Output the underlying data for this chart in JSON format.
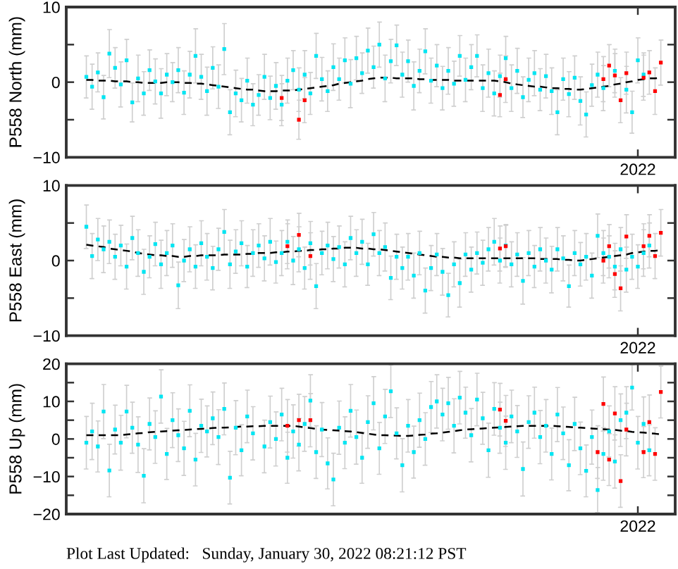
{
  "chart_data": [
    {
      "type": "scatter",
      "ylabel": "P558 North (mm)",
      "marker": "square",
      "categories": [
        null,
        null,
        null,
        null,
        null,
        null,
        null,
        null,
        null,
        null,
        null,
        null,
        null,
        null,
        null,
        null,
        null,
        null,
        null,
        null,
        null,
        null,
        null,
        null,
        null,
        null,
        null,
        null,
        null,
        null,
        null,
        null,
        null,
        null,
        null,
        null,
        null,
        null,
        null,
        null,
        null,
        null,
        null,
        null,
        null,
        null,
        null,
        null,
        null,
        null,
        null,
        null,
        null,
        null,
        null,
        null,
        null,
        null,
        null,
        null,
        null,
        null,
        null,
        null,
        null,
        null,
        null,
        null,
        null,
        null,
        null,
        null,
        null,
        null,
        null,
        null,
        null,
        null,
        null,
        null,
        null,
        null,
        null,
        null,
        null,
        null,
        null,
        null,
        null,
        null,
        null,
        null,
        null,
        null,
        null,
        null,
        null,
        null,
        null,
        "2022",
        null,
        null,
        null,
        null,
        null,
        null
      ],
      "ylim": [
        -10,
        10
      ],
      "yticks": [
        -10,
        {
          "value": -5,
          "label": null
        },
        0,
        {
          "value": 5,
          "label": null
        },
        10
      ],
      "series": [
        {
          "color": "#00e5f2",
          "values": [
            null,
            null,
            null,
            0.7,
            -0.6,
            1.3,
            -2.0,
            3.8,
            1.9,
            -0.3,
            2.9,
            -2.7,
            0.5,
            -1.5,
            1.6,
            0.1,
            -1.5,
            1.0,
            0.0,
            1.6,
            -1.4,
            1.0,
            3.5,
            0.7,
            -1.2,
            1.9,
            -0.6,
            4.4,
            -4.0,
            -1.5,
            -2.4,
            0.2,
            -3.0,
            -1.7,
            0.7,
            -2.1,
            -0.5,
            -3.0,
            0.2,
            1.6,
            -1.0,
            1.0,
            -1.5,
            3.5,
            0.4,
            -1.2,
            2.0,
            0.4,
            2.9,
            -0.2,
            3.2,
            1.2,
            4.2,
            2.0,
            5.0,
            0.5,
            2.8,
            4.9,
            1.0,
            2.8,
            -0.5,
            1.5,
            4.1,
            0.2,
            2.2,
            -0.8,
            1.5,
            -0.2,
            3.5,
            0.3,
            2.0,
            3.5,
            -0.8,
            1.2,
            -1.5,
            0.8,
            3.2,
            -0.8,
            1.5,
            -2.0,
            0.3,
            1.2,
            -1.0,
            0.8,
            -1.2,
            -4.0,
            0.4,
            -1.6,
            0.6,
            -2.5,
            -4.3,
            -0.4,
            1.0,
            -0.8,
            null,
            1.5,
            null,
            -1.0,
            -4.0,
            2.9,
            1.0,
            null,
            null,
            null,
            null,
            null
          ],
          "errors": [
            null,
            null,
            null,
            2.8,
            3.0,
            2.6,
            2.9,
            3.2,
            2.7,
            3.0,
            2.8,
            2.6,
            3.1,
            2.9,
            2.7,
            3.0,
            3.3,
            2.8,
            2.6,
            3.0,
            2.9,
            3.1,
            3.6,
            3.0,
            3.2,
            2.8,
            2.9,
            3.4,
            3.0,
            3.1,
            2.9,
            3.0,
            2.8,
            2.7,
            3.0,
            2.9,
            3.1,
            2.8,
            3.0,
            2.6,
            2.9,
            3.2,
            2.8,
            3.0,
            2.9,
            2.7,
            3.1,
            2.8,
            3.0,
            3.2,
            2.9,
            2.7,
            3.0,
            2.8,
            3.0,
            3.1,
            2.9,
            2.7,
            3.0,
            2.8,
            3.2,
            2.9,
            3.0,
            3.0,
            2.8,
            2.9,
            3.1,
            3.0,
            2.7,
            2.9,
            3.0,
            2.8,
            3.1,
            3.2,
            3.0,
            2.8,
            2.9,
            3.1,
            3.0,
            2.7,
            2.9,
            3.0,
            2.8,
            2.9,
            3.1,
            3.0,
            2.8,
            3.0,
            2.9,
            3.2,
            3.0,
            2.8,
            3.0,
            3.0,
            null,
            2.9,
            null,
            3.1,
            2.8,
            3.0,
            2.9,
            null,
            null,
            null,
            null,
            null
          ]
        },
        {
          "color": "#ff0000",
          "values": [
            null,
            null,
            null,
            null,
            null,
            null,
            null,
            null,
            null,
            null,
            null,
            null,
            null,
            null,
            null,
            null,
            null,
            null,
            null,
            null,
            null,
            null,
            null,
            null,
            null,
            null,
            null,
            null,
            null,
            null,
            null,
            null,
            null,
            null,
            null,
            null,
            null,
            -2.1,
            null,
            null,
            -5.0,
            -2.4,
            null,
            null,
            null,
            null,
            null,
            null,
            null,
            null,
            null,
            null,
            null,
            null,
            null,
            null,
            null,
            null,
            null,
            null,
            null,
            null,
            null,
            null,
            null,
            null,
            null,
            null,
            null,
            null,
            null,
            null,
            null,
            null,
            null,
            -1.7,
            0.4,
            null,
            null,
            null,
            null,
            null,
            null,
            null,
            null,
            null,
            null,
            null,
            null,
            null,
            null,
            null,
            null,
            0.4,
            2.2,
            0.9,
            -2.4,
            1.2,
            null,
            null,
            0.6,
            1.3,
            -1.2,
            2.6,
            null,
            null
          ],
          "errors": [
            null,
            null,
            null,
            null,
            null,
            null,
            null,
            null,
            null,
            null,
            null,
            null,
            null,
            null,
            null,
            null,
            null,
            null,
            null,
            null,
            null,
            null,
            null,
            null,
            null,
            null,
            null,
            null,
            null,
            null,
            null,
            null,
            null,
            null,
            null,
            null,
            null,
            3.0,
            null,
            null,
            2.6,
            3.0,
            null,
            null,
            null,
            null,
            null,
            null,
            null,
            null,
            null,
            null,
            null,
            null,
            null,
            null,
            null,
            null,
            null,
            null,
            null,
            null,
            null,
            null,
            null,
            null,
            null,
            null,
            null,
            null,
            null,
            null,
            null,
            null,
            null,
            2.9,
            3.1,
            null,
            null,
            null,
            null,
            null,
            null,
            null,
            null,
            null,
            null,
            null,
            null,
            null,
            null,
            null,
            null,
            3.0,
            2.8,
            2.9,
            3.0,
            2.8,
            null,
            null,
            3.0,
            2.9,
            3.1,
            3.0,
            null,
            null
          ]
        },
        {
          "type": "line",
          "color": "#000000",
          "line_style": "dashed",
          "marker": "none",
          "values": [
            null,
            null,
            null,
            0.3,
            0.3,
            0.2,
            0.2,
            0.2,
            0.1,
            0.1,
            0.1,
            0.0,
            0.0,
            -0.1,
            -0.1,
            -0.1,
            -0.1,
            0.0,
            0.0,
            0.0,
            -0.1,
            -0.1,
            -0.2,
            -0.2,
            -0.3,
            -0.4,
            -0.5,
            -0.6,
            -0.7,
            -0.8,
            -0.9,
            -1.0,
            -1.0,
            -1.1,
            -1.2,
            -1.2,
            -1.2,
            -1.1,
            -1.1,
            -1.1,
            -1.0,
            -0.9,
            -0.8,
            -0.7,
            -0.6,
            -0.5,
            -0.4,
            -0.2,
            -0.1,
            0.0,
            0.1,
            0.2,
            0.4,
            0.5,
            0.6,
            0.6,
            0.6,
            0.5,
            0.5,
            0.5,
            0.5,
            0.4,
            0.4,
            0.3,
            0.3,
            0.3,
            0.3,
            0.2,
            0.2,
            0.2,
            0.2,
            0.2,
            0.2,
            0.2,
            0.2,
            0.1,
            0.0,
            -0.2,
            -0.3,
            -0.4,
            -0.5,
            -0.6,
            -0.6,
            -0.7,
            -0.8,
            -0.8,
            -0.9,
            -0.9,
            -1.0,
            -1.0,
            -0.9,
            -0.8,
            -0.7,
            -0.6,
            -0.5,
            -0.3,
            -0.2,
            0.0,
            0.1,
            0.3,
            0.4,
            0.5,
            0.5,
            0.6,
            null,
            null
          ]
        }
      ]
    },
    {
      "type": "scatter",
      "ylabel": "P558 East (mm)",
      "marker": "square",
      "categories": [
        null,
        null,
        null,
        null,
        null,
        null,
        null,
        null,
        null,
        null,
        null,
        null,
        null,
        null,
        null,
        null,
        null,
        null,
        null,
        null,
        null,
        null,
        null,
        null,
        null,
        null,
        null,
        null,
        null,
        null,
        null,
        null,
        null,
        null,
        null,
        null,
        null,
        null,
        null,
        null,
        null,
        null,
        null,
        null,
        null,
        null,
        null,
        null,
        null,
        null,
        null,
        null,
        null,
        null,
        null,
        null,
        null,
        null,
        null,
        null,
        null,
        null,
        null,
        null,
        null,
        null,
        null,
        null,
        null,
        null,
        null,
        null,
        null,
        null,
        null,
        null,
        null,
        null,
        null,
        null,
        null,
        null,
        null,
        null,
        null,
        null,
        null,
        null,
        null,
        null,
        null,
        null,
        null,
        null,
        null,
        null,
        null,
        null,
        null,
        "2022",
        null,
        null,
        null,
        null,
        null,
        null
      ],
      "ylim": [
        -10,
        10
      ],
      "yticks": [
        -10,
        {
          "value": -5,
          "label": null
        },
        0,
        {
          "value": 5,
          "label": null
        },
        10
      ],
      "series": [
        {
          "color": "#00e5f2",
          "values": [
            null,
            null,
            null,
            4.5,
            0.6,
            2.8,
            1.5,
            2.5,
            0.5,
            2.0,
            -0.8,
            3.0,
            1.0,
            -1.5,
            0.5,
            2.2,
            -0.5,
            1.0,
            2.0,
            -3.3,
            0.0,
            1.5,
            -0.8,
            2.3,
            0.5,
            -1.0,
            1.5,
            3.8,
            -0.5,
            1.2,
            2.3,
            -0.8,
            1.0,
            2.0,
            0.3,
            2.5,
            -0.2,
            1.0,
            2.5,
            0.0,
            1.5,
            -1.0,
            2.3,
            -3.4,
            1.0,
            2.0,
            0.2,
            1.8,
            -0.5,
            3.0,
            1.0,
            2.5,
            -0.5,
            3.5,
            1.0,
            1.8,
            -2.3,
            0.5,
            -1.0,
            0.5,
            -2.0,
            1.0,
            -4.0,
            -1.0,
            0.8,
            -1.5,
            -4.6,
            -0.5,
            -3.0,
            0.8,
            -1.2,
            1.0,
            -0.3,
            1.5,
            2.5,
            0.0,
            2.0,
            -0.5,
            0.8,
            -2.7,
            1.0,
            -0.8,
            1.5,
            0.0,
            -1.2,
            1.5,
            0.3,
            -3.4,
            1.0,
            -0.5,
            0.5,
            -2.0,
            3.3,
            1.0,
            0.5,
            -0.8,
            1.5,
            -1.2,
            0.5,
            -0.8,
            1.0,
            2.0,
            null,
            null,
            null,
            null
          ],
          "errors": [
            null,
            null,
            null,
            2.9,
            3.0,
            2.8,
            3.1,
            2.9,
            3.0,
            2.7,
            3.0,
            2.9,
            3.1,
            3.0,
            2.8,
            2.9,
            3.2,
            3.0,
            2.9,
            3.1,
            2.8,
            3.0,
            2.9,
            3.0,
            3.1,
            2.9,
            2.8,
            3.0,
            3.2,
            2.9,
            3.0,
            2.8,
            3.1,
            2.9,
            3.0,
            3.1,
            2.8,
            3.0,
            2.9,
            3.2,
            3.0,
            2.8,
            2.9,
            3.0,
            2.9,
            3.1,
            3.0,
            2.8,
            3.0,
            2.9,
            3.1,
            3.0,
            2.8,
            2.9,
            3.0,
            3.2,
            2.9,
            3.0,
            2.8,
            3.1,
            3.0,
            2.9,
            3.0,
            3.0,
            2.8,
            3.1,
            2.9,
            3.0,
            3.2,
            2.9,
            3.0,
            2.8,
            3.0,
            2.9,
            3.1,
            3.0,
            2.8,
            3.0,
            2.9,
            3.1,
            3.0,
            2.8,
            2.9,
            3.0,
            3.1,
            2.9,
            3.0,
            2.8,
            3.0,
            2.9,
            3.1,
            3.0,
            2.9,
            3.0,
            2.8,
            3.1,
            2.9,
            3.0,
            3.0,
            2.9,
            3.1,
            3.0,
            null,
            null,
            null,
            null
          ]
        },
        {
          "color": "#ff0000",
          "values": [
            null,
            null,
            null,
            null,
            null,
            null,
            null,
            null,
            null,
            null,
            null,
            null,
            null,
            null,
            null,
            null,
            null,
            null,
            null,
            null,
            null,
            null,
            null,
            null,
            null,
            null,
            null,
            null,
            null,
            null,
            null,
            null,
            null,
            null,
            null,
            null,
            null,
            null,
            1.9,
            null,
            3.4,
            null,
            0.6,
            null,
            null,
            null,
            null,
            null,
            null,
            null,
            null,
            null,
            null,
            null,
            null,
            null,
            null,
            null,
            null,
            null,
            null,
            null,
            null,
            null,
            null,
            null,
            null,
            null,
            null,
            null,
            null,
            null,
            null,
            null,
            null,
            1.6,
            1.9,
            null,
            null,
            null,
            null,
            null,
            null,
            null,
            null,
            null,
            null,
            null,
            null,
            null,
            null,
            null,
            null,
            0.0,
            1.9,
            -1.8,
            -3.7,
            3.2,
            null,
            null,
            1.9,
            3.3,
            0.6,
            3.7,
            null,
            null
          ],
          "errors": [
            null,
            null,
            null,
            null,
            null,
            null,
            null,
            null,
            null,
            null,
            null,
            null,
            null,
            null,
            null,
            null,
            null,
            null,
            null,
            null,
            null,
            null,
            null,
            null,
            null,
            null,
            null,
            null,
            null,
            null,
            null,
            null,
            null,
            null,
            null,
            null,
            null,
            null,
            3.0,
            null,
            2.9,
            null,
            3.1,
            null,
            null,
            null,
            null,
            null,
            null,
            null,
            null,
            null,
            null,
            null,
            null,
            null,
            null,
            null,
            null,
            null,
            null,
            null,
            null,
            null,
            null,
            null,
            null,
            null,
            null,
            null,
            null,
            null,
            null,
            null,
            null,
            3.0,
            2.8,
            null,
            null,
            null,
            null,
            null,
            null,
            null,
            null,
            null,
            null,
            null,
            null,
            null,
            null,
            null,
            null,
            3.0,
            2.9,
            3.1,
            3.0,
            2.9,
            null,
            null,
            3.0,
            2.8,
            3.0,
            3.1,
            null,
            null
          ]
        },
        {
          "type": "line",
          "color": "#000000",
          "line_style": "dashed",
          "marker": "none",
          "values": [
            null,
            null,
            null,
            2.1,
            2.0,
            1.9,
            1.8,
            1.6,
            1.5,
            1.4,
            1.3,
            1.2,
            1.0,
            0.9,
            0.8,
            0.7,
            0.7,
            0.6,
            0.6,
            0.5,
            0.5,
            0.6,
            0.6,
            0.7,
            0.7,
            0.7,
            0.7,
            0.8,
            0.8,
            0.8,
            0.8,
            0.9,
            0.9,
            1.0,
            1.0,
            1.0,
            1.1,
            1.1,
            1.2,
            1.2,
            1.3,
            1.3,
            1.4,
            1.4,
            1.5,
            1.5,
            1.6,
            1.6,
            1.7,
            1.7,
            1.7,
            1.6,
            1.6,
            1.5,
            1.5,
            1.4,
            1.3,
            1.2,
            1.1,
            1.0,
            0.9,
            0.8,
            0.7,
            0.6,
            0.5,
            0.5,
            0.4,
            0.4,
            0.3,
            0.3,
            0.3,
            0.3,
            0.3,
            0.3,
            0.3,
            0.3,
            0.3,
            0.3,
            0.3,
            0.3,
            0.3,
            0.3,
            0.2,
            0.2,
            0.2,
            0.2,
            0.1,
            0.1,
            0.0,
            0.0,
            0.1,
            0.2,
            0.3,
            0.4,
            0.5,
            0.6,
            0.7,
            0.8,
            1.0,
            1.1,
            1.2,
            1.3,
            1.3,
            1.4,
            null,
            null
          ]
        }
      ]
    },
    {
      "type": "scatter",
      "ylabel": "P558 Up (mm)",
      "marker": "square",
      "categories": [
        null,
        null,
        null,
        null,
        null,
        null,
        null,
        null,
        null,
        null,
        null,
        null,
        null,
        null,
        null,
        null,
        null,
        null,
        null,
        null,
        null,
        null,
        null,
        null,
        null,
        null,
        null,
        null,
        null,
        null,
        null,
        null,
        null,
        null,
        null,
        null,
        null,
        null,
        null,
        null,
        null,
        null,
        null,
        null,
        null,
        null,
        null,
        null,
        null,
        null,
        null,
        null,
        null,
        null,
        null,
        null,
        null,
        null,
        null,
        null,
        null,
        null,
        null,
        null,
        null,
        null,
        null,
        null,
        null,
        null,
        null,
        null,
        null,
        null,
        null,
        null,
        null,
        null,
        null,
        null,
        null,
        null,
        null,
        null,
        null,
        null,
        null,
        null,
        null,
        null,
        null,
        null,
        null,
        null,
        null,
        null,
        null,
        null,
        null,
        "2022",
        null,
        null,
        null,
        null,
        null,
        null
      ],
      "ylim": [
        -20,
        20
      ],
      "yticks": [
        -20,
        {
          "value": -15,
          "label": null
        },
        -10,
        {
          "value": -5,
          "label": null
        },
        0,
        {
          "value": 5,
          "label": null
        },
        10,
        {
          "value": 15,
          "label": null
        },
        20
      ],
      "annotations": [
        "Plot Last Updated:   Sunday, January 30, 2022 08:21:12 PST"
      ],
      "series": [
        {
          "color": "#00e5f2",
          "values": [
            null,
            null,
            null,
            -1.0,
            2.0,
            -2.0,
            7.3,
            -8.4,
            2.5,
            -1.0,
            7.3,
            3.0,
            -1.5,
            -9.8,
            4.0,
            0.5,
            11.3,
            -4.0,
            5.0,
            1.0,
            -2.5,
            7.5,
            -5.5,
            3.5,
            2.0,
            5.5,
            0.5,
            8.0,
            -10.3,
            3.0,
            -3.0,
            6.0,
            1.5,
            null,
            -2.0,
            4.5,
            0.0,
            6.5,
            -5.0,
            2.0,
            -1.5,
            4.0,
            10.2,
            -3.5,
            2.5,
            -6.5,
            -10.8,
            3.0,
            -1.0,
            7.5,
            0.5,
            -5.0,
            4.5,
            9.5,
            -2.5,
            6.0,
            12.7,
            1.5,
            -7.0,
            3.5,
            -3.5,
            5.0,
            0.0,
            8.5,
            10.0,
            6.5,
            9.5,
            3.5,
            11.0,
            7.0,
            1.0,
            10.5,
            5.5,
            -3.0,
            8.0,
            3.0,
            -1.0,
            6.0,
            2.0,
            -8.0,
            4.5,
            7.0,
            0.5,
            3.5,
            -4.0,
            6.5,
            1.5,
            -7.0,
            4.0,
            -2.5,
            -8.5,
            0.5,
            -13.6,
            -4.0,
            2.0,
            -6.0,
            5.0,
            7.0,
            13.7,
            -1.0,
            4.0,
            -3.0,
            null,
            null,
            null,
            null
          ],
          "errors": [
            null,
            null,
            null,
            7.0,
            7.5,
            6.8,
            7.2,
            7.0,
            6.5,
            7.3,
            7.0,
            6.8,
            7.4,
            7.2,
            6.9,
            7.0,
            7.1,
            6.8,
            7.3,
            7.0,
            7.2,
            6.9,
            7.0,
            7.1,
            6.8,
            7.0,
            7.3,
            6.9,
            7.0,
            7.2,
            6.8,
            7.0,
            7.1,
            null,
            7.0,
            6.9,
            7.2,
            7.0,
            6.8,
            7.1,
            7.0,
            7.3,
            6.9,
            7.0,
            7.2,
            6.8,
            7.0,
            7.1,
            6.9,
            7.0,
            7.2,
            6.8,
            7.0,
            7.1,
            6.9,
            7.2,
            7.0,
            6.8,
            7.1,
            7.0,
            6.9,
            7.2,
            7.0,
            6.8,
            7.1,
            7.0,
            6.9,
            7.2,
            7.0,
            6.8,
            7.1,
            7.0,
            6.9,
            7.2,
            7.0,
            6.8,
            7.1,
            7.0,
            6.9,
            7.2,
            7.0,
            6.8,
            7.1,
            7.0,
            6.9,
            7.2,
            7.0,
            6.8,
            7.1,
            7.0,
            6.9,
            7.2,
            6.0,
            7.0,
            6.8,
            7.1,
            7.0,
            6.9,
            6.0,
            7.0,
            7.2,
            6.8,
            null,
            null,
            null,
            null
          ]
        },
        {
          "color": "#ff0000",
          "values": [
            null,
            null,
            null,
            null,
            null,
            null,
            null,
            null,
            null,
            null,
            null,
            null,
            null,
            null,
            null,
            null,
            null,
            null,
            null,
            null,
            null,
            null,
            null,
            null,
            null,
            null,
            null,
            null,
            null,
            null,
            null,
            null,
            null,
            null,
            null,
            null,
            null,
            null,
            3.5,
            null,
            5.0,
            null,
            5.0,
            null,
            null,
            null,
            null,
            null,
            null,
            null,
            null,
            null,
            null,
            null,
            null,
            null,
            null,
            null,
            null,
            null,
            null,
            null,
            null,
            null,
            null,
            null,
            null,
            null,
            null,
            null,
            null,
            null,
            null,
            null,
            null,
            7.8,
            4.8,
            null,
            null,
            null,
            null,
            null,
            null,
            null,
            null,
            null,
            null,
            null,
            null,
            null,
            null,
            null,
            -3.5,
            9.3,
            -5.5,
            6.8,
            -11.2,
            2.5,
            null,
            null,
            -3.5,
            4.5,
            -4.0,
            12.5,
            null,
            null
          ],
          "errors": [
            null,
            null,
            null,
            null,
            null,
            null,
            null,
            null,
            null,
            null,
            null,
            null,
            null,
            null,
            null,
            null,
            null,
            null,
            null,
            null,
            null,
            null,
            null,
            null,
            null,
            null,
            null,
            null,
            null,
            null,
            null,
            null,
            null,
            null,
            null,
            null,
            null,
            null,
            7.0,
            null,
            6.9,
            null,
            7.1,
            null,
            null,
            null,
            null,
            null,
            null,
            null,
            null,
            null,
            null,
            null,
            null,
            null,
            null,
            null,
            null,
            null,
            null,
            null,
            null,
            null,
            null,
            null,
            null,
            null,
            null,
            null,
            null,
            null,
            null,
            null,
            null,
            7.0,
            6.8,
            null,
            null,
            null,
            null,
            null,
            null,
            null,
            null,
            null,
            null,
            null,
            null,
            null,
            null,
            null,
            7.0,
            7.2,
            6.9,
            7.1,
            7.0,
            7.0,
            null,
            null,
            6.8,
            7.2,
            7.0,
            6.9,
            null,
            null
          ]
        },
        {
          "type": "line",
          "color": "#000000",
          "line_style": "dashed",
          "marker": "none",
          "values": [
            null,
            null,
            null,
            1.0,
            1.0,
            1.0,
            1.0,
            1.0,
            1.0,
            1.0,
            1.2,
            1.3,
            1.5,
            1.6,
            1.8,
            1.9,
            2.0,
            2.1,
            2.2,
            2.3,
            2.4,
            2.5,
            2.6,
            2.7,
            2.8,
            2.9,
            3.0,
            3.0,
            3.1,
            3.2,
            3.3,
            3.3,
            3.4,
            3.4,
            3.5,
            3.5,
            3.5,
            3.5,
            3.5,
            3.5,
            3.3,
            3.1,
            2.9,
            2.7,
            2.5,
            2.4,
            2.3,
            2.2,
            2.1,
            2.0,
            1.8,
            1.6,
            1.4,
            1.2,
            1.0,
            1.0,
            0.9,
            0.9,
            0.8,
            0.8,
            0.9,
            1.1,
            1.2,
            1.4,
            1.5,
            1.7,
            1.9,
            2.1,
            2.3,
            2.5,
            2.6,
            2.7,
            2.8,
            2.9,
            3.0,
            3.1,
            3.2,
            3.3,
            3.4,
            3.5,
            3.5,
            3.5,
            3.5,
            3.5,
            3.5,
            3.4,
            3.3,
            3.2,
            3.1,
            3.0,
            2.9,
            2.8,
            2.7,
            2.6,
            2.5,
            2.4,
            2.2,
            2.1,
            1.9,
            1.8,
            1.7,
            1.5,
            1.4,
            1.2,
            null,
            null
          ]
        }
      ]
    }
  ]
}
